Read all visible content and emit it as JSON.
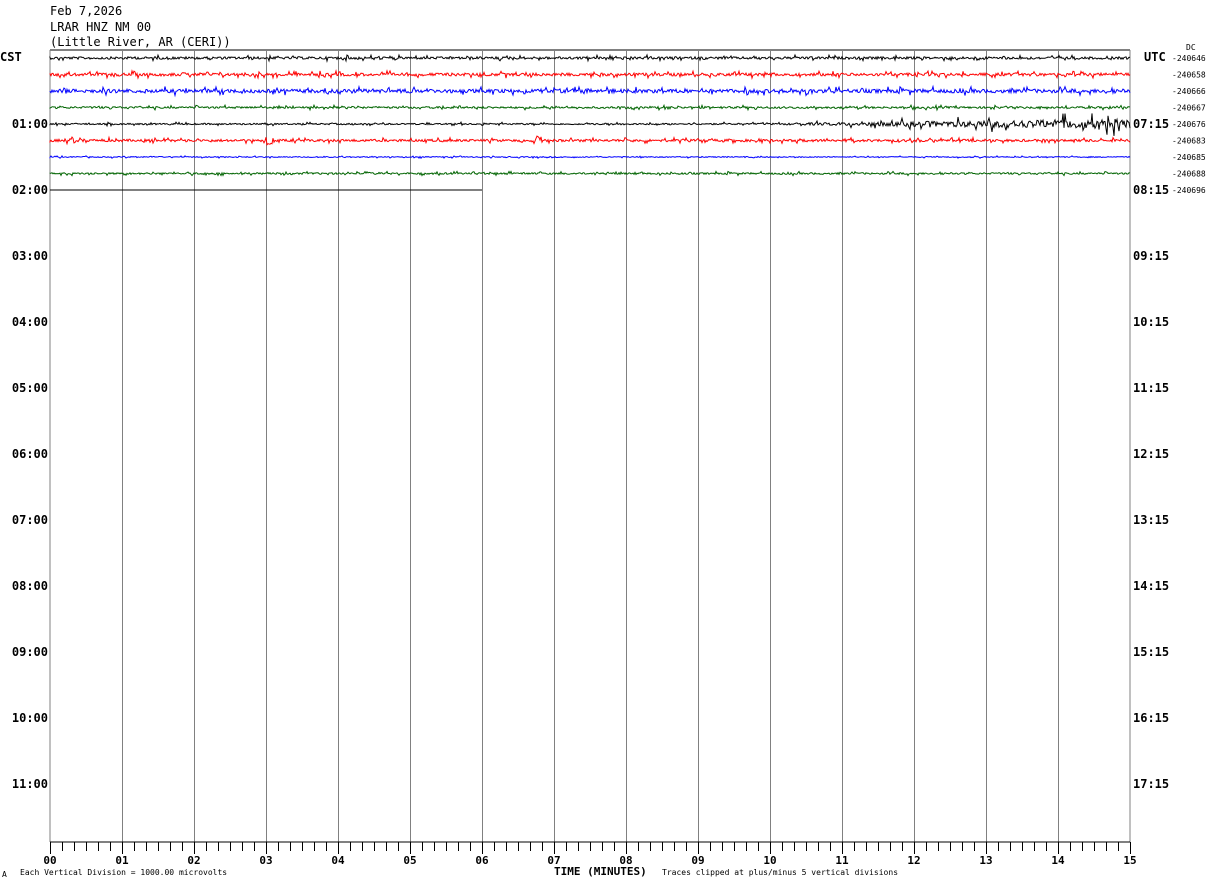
{
  "header": {
    "date": "Feb 7,2026",
    "station": "LRAR HNZ NM 00",
    "location": "(Little River, AR (CERI))"
  },
  "left_zone": "CST",
  "right_zone": "UTC",
  "dc_label": "DC",
  "footer": {
    "scale_note": "Each Vertical Division = 1000.00 microvolts",
    "xlabel": "TIME (MINUTES)",
    "clip_note": "Traces clipped at plus/minus 5 vertical divisions",
    "corner_mark": "A"
  },
  "chart_data": {
    "type": "line",
    "subtype": "helicorder",
    "xlabel": "TIME (MINUTES)",
    "xlim": [
      0,
      15
    ],
    "x_ticks": [
      "00",
      "01",
      "02",
      "03",
      "04",
      "05",
      "06",
      "07",
      "08",
      "09",
      "10",
      "11",
      "12",
      "13",
      "14",
      "15"
    ],
    "minor_ticks_per_minute": 6,
    "grid": "vertical lines every minute",
    "trace_colors": [
      "#000000",
      "#ff0000",
      "#0000ff",
      "#006400"
    ],
    "left_hour_labels": [
      "01:00",
      "02:00",
      "03:00",
      "04:00",
      "05:00",
      "06:00",
      "07:00",
      "08:00",
      "09:00",
      "10:00",
      "11:00"
    ],
    "right_hour_labels": [
      "07:15",
      "08:15",
      "09:15",
      "10:15",
      "11:15",
      "12:15",
      "13:15",
      "14:15",
      "15:15",
      "16:15",
      "17:15"
    ],
    "rows_per_hour": 4,
    "total_rows": 48,
    "traces": [
      {
        "row": 0,
        "color": "#000000",
        "dc": "-240646",
        "amplitude": 1.0,
        "end_minute": 15
      },
      {
        "row": 1,
        "color": "#ff0000",
        "dc": "-240658",
        "amplitude": 1.2,
        "end_minute": 15
      },
      {
        "row": 2,
        "color": "#0000ff",
        "dc": "-240666",
        "amplitude": 1.5,
        "end_minute": 15
      },
      {
        "row": 3,
        "color": "#006400",
        "dc": "-240667",
        "amplitude": 0.8,
        "end_minute": 15
      },
      {
        "row": 4,
        "color": "#000000",
        "dc": "-240676",
        "amplitude": 0.6,
        "end_minute": 15,
        "burst_from_minute": 10
      },
      {
        "row": 5,
        "color": "#ff0000",
        "dc": "-240683",
        "amplitude": 1.0,
        "end_minute": 15,
        "events_minute": [
          0.3,
          3.05,
          6.8
        ]
      },
      {
        "row": 6,
        "color": "#0000ff",
        "dc": "-240685",
        "amplitude": 0.4,
        "end_minute": 15
      },
      {
        "row": 7,
        "color": "#006400",
        "dc": "-240688",
        "amplitude": 0.7,
        "end_minute": 15
      },
      {
        "row": 8,
        "color": "#000000",
        "dc": "-240696",
        "amplitude": 0.0,
        "end_minute": 6
      }
    ]
  }
}
